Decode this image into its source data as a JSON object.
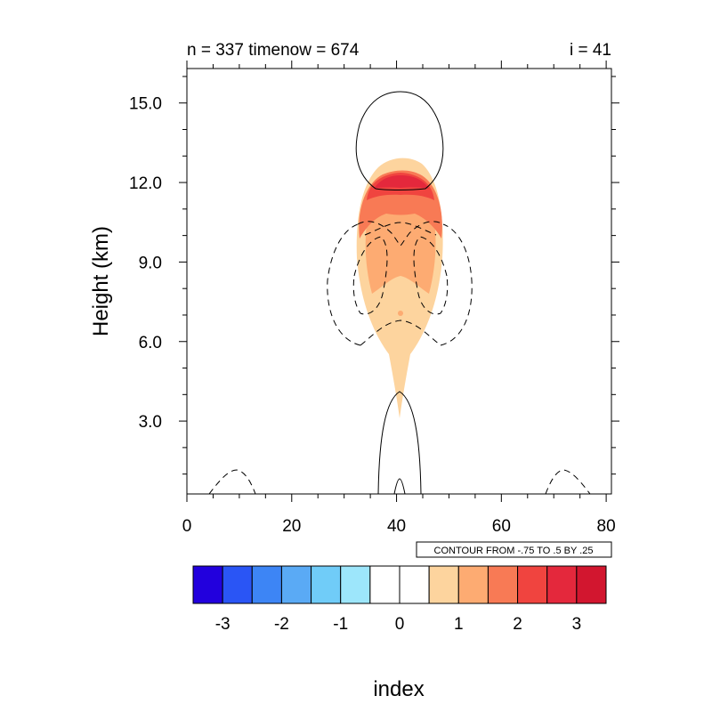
{
  "chart_data": {
    "type": "contour",
    "title_left": "n = 337 timenow = 674",
    "title_right": "i = 41",
    "xlabel": "index",
    "ylabel": "Height (km)",
    "xlim": [
      0,
      81
    ],
    "ylim": [
      0.25,
      16.3
    ],
    "x_ticks": [
      0,
      20,
      40,
      60,
      80
    ],
    "x_tick_labels": [
      "0",
      "20",
      "40",
      "60",
      "80"
    ],
    "y_ticks": [
      3.0,
      6.0,
      9.0,
      12.0,
      15.0
    ],
    "y_tick_labels": [
      "3.0",
      "6.0",
      "9.0",
      "12.0",
      "15.0"
    ],
    "contour_info": "CONTOUR FROM -.75 TO .5 BY .25",
    "colorbar": {
      "colors": [
        "#2200dd",
        "#2a55f5",
        "#3d85f5",
        "#5aaaf5",
        "#70ccf8",
        "#9de6fb",
        "#ffffff",
        "#ffffff",
        "#fdd49e",
        "#fdab72",
        "#f87a55",
        "#f0443f",
        "#e4283c",
        "#d2162f"
      ],
      "labels": [
        "-3",
        "-2",
        "-1",
        "0",
        "1",
        "2",
        "3"
      ]
    },
    "filled_regions": [
      {
        "level": 0.5,
        "color": "#fdd49e",
        "x": [
          33.5,
          48.5
        ],
        "y": [
          3.0,
          12.8
        ]
      },
      {
        "level": 1.0,
        "color": "#fdab72",
        "x": [
          34.5,
          47.5
        ],
        "y": [
          6.8,
          12.6
        ]
      },
      {
        "level": 1.5,
        "color": "#f87a55",
        "x": [
          34.5,
          47.5
        ],
        "y": [
          9.6,
          12.3
        ]
      },
      {
        "level": 2.0,
        "color": "#f0443f",
        "x": [
          35.5,
          46.5
        ],
        "y": [
          10.6,
          12.2
        ]
      },
      {
        "level": 2.5,
        "color": "#e4283c",
        "x": [
          37.0,
          45.0
        ],
        "y": [
          11.2,
          12.0
        ]
      }
    ],
    "contour_lines": [
      {
        "level": 0.25,
        "style": "solid",
        "x": [
          33.5,
          50.0
        ],
        "y": [
          11.7,
          15.3
        ]
      },
      {
        "level": 0.25,
        "style": "solid",
        "x": [
          37.5,
          44.5
        ],
        "y": [
          0.25,
          4.0
        ]
      },
      {
        "level": -0.25,
        "style": "dashed",
        "x": [
          27.5,
          37.5
        ],
        "y": [
          5.8,
          10.5
        ]
      },
      {
        "level": -0.25,
        "style": "dashed",
        "x": [
          44.5,
          54.5
        ],
        "y": [
          5.8,
          10.5
        ]
      },
      {
        "level": -0.25,
        "style": "dashed",
        "x": [
          4.0,
          13.0
        ],
        "y": [
          0.25,
          1.1
        ]
      },
      {
        "level": -0.25,
        "style": "dashed",
        "x": [
          69.0,
          78.0
        ],
        "y": [
          0.25,
          1.1
        ]
      }
    ]
  }
}
